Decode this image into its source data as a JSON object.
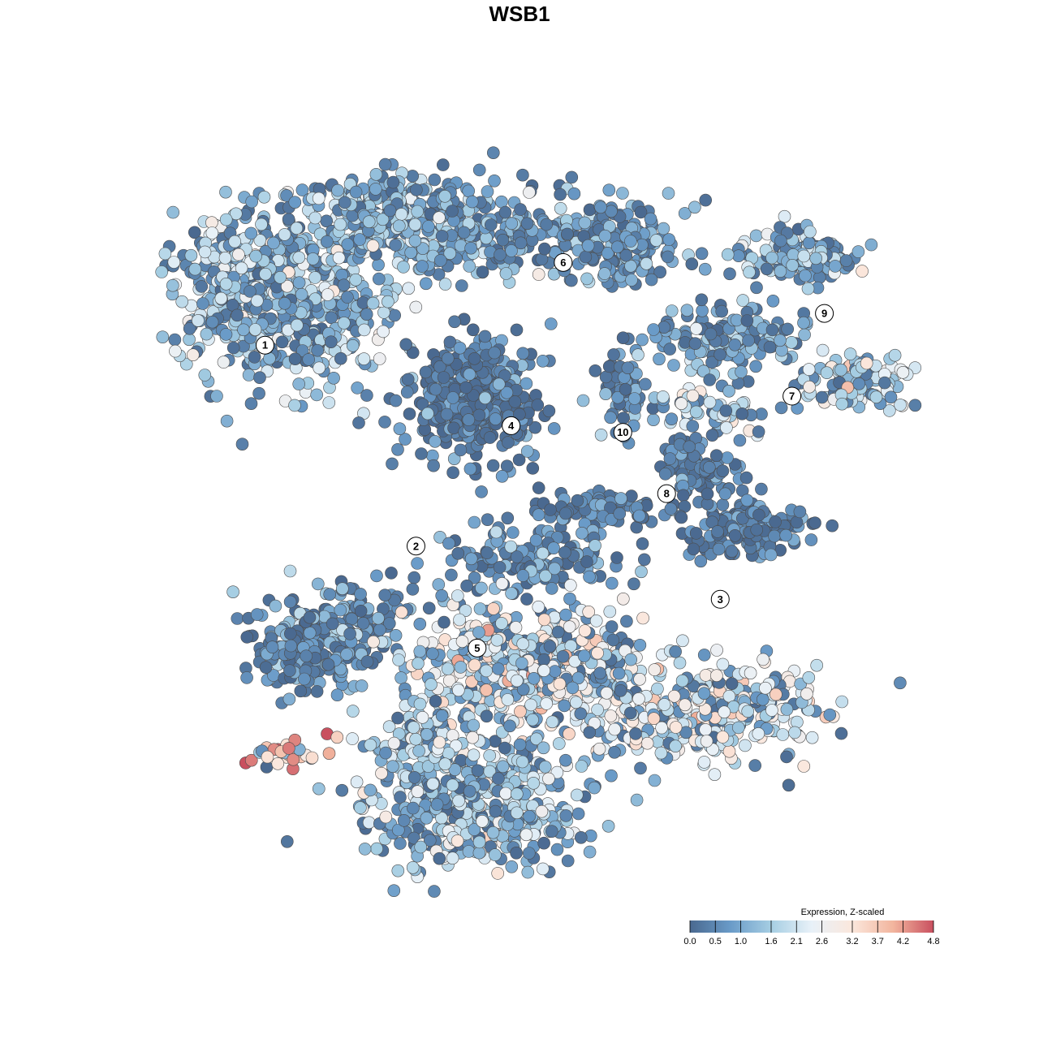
{
  "chart_data": {
    "type": "scatter",
    "title": "WSB1",
    "xlabel": "",
    "ylabel": "",
    "grid": false,
    "colorbar": {
      "title": "Expression, Z-scaled",
      "min": 0.0,
      "max": 4.8,
      "ticks": [
        "0.0",
        "0.5",
        "1.0",
        "1.6",
        "2.1",
        "2.6",
        "3.2",
        "3.7",
        "4.2",
        "4.8"
      ],
      "colors": [
        "#4a6990",
        "#6a9bc8",
        "#a6cee3",
        "#e8f1f8",
        "#fbe7dc",
        "#f2b59e",
        "#c9505f"
      ],
      "placement": "bottom-right"
    },
    "clusters": [
      {
        "label": "1",
        "x": 0.136,
        "y": 0.736
      },
      {
        "label": "2",
        "x": 0.336,
        "y": 0.464
      },
      {
        "label": "3",
        "x": 0.739,
        "y": 0.392
      },
      {
        "label": "4",
        "x": 0.462,
        "y": 0.627
      },
      {
        "label": "5",
        "x": 0.417,
        "y": 0.326
      },
      {
        "label": "6",
        "x": 0.531,
        "y": 0.848
      },
      {
        "label": "7",
        "x": 0.834,
        "y": 0.667
      },
      {
        "label": "8",
        "x": 0.668,
        "y": 0.535
      },
      {
        "label": "9",
        "x": 0.877,
        "y": 0.779
      },
      {
        "label": "10",
        "x": 0.61,
        "y": 0.618
      }
    ]
  }
}
